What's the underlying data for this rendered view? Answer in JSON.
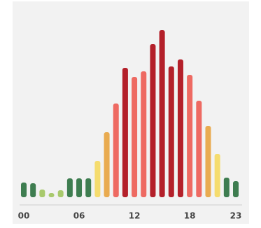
{
  "chart_data": {
    "type": "bar",
    "categories": [
      "00",
      null,
      null,
      null,
      null,
      null,
      "06",
      null,
      null,
      null,
      null,
      null,
      "12",
      null,
      null,
      null,
      null,
      null,
      "18",
      null,
      null,
      null,
      null,
      "23"
    ],
    "values": [
      21,
      20,
      11,
      6,
      10,
      27,
      27,
      27,
      52,
      93,
      134,
      185,
      172,
      180,
      219,
      239,
      187,
      197,
      175,
      138,
      102,
      62,
      28,
      23
    ],
    "colors": [
      "#3e7d50",
      "#3e7d50",
      "#a8c96c",
      "#a8c96c",
      "#a8c96c",
      "#3e7d50",
      "#3e7d50",
      "#3e7d50",
      "#f5dc6e",
      "#e9ab50",
      "#ee6a62",
      "#b4202a",
      "#ee6a62",
      "#ee6a62",
      "#b4202a",
      "#b4202a",
      "#b4202a",
      "#b4202a",
      "#ee6a62",
      "#ee6a62",
      "#e9ab50",
      "#f5dc6e",
      "#3e7d50",
      "#3e7d50"
    ]
  }
}
